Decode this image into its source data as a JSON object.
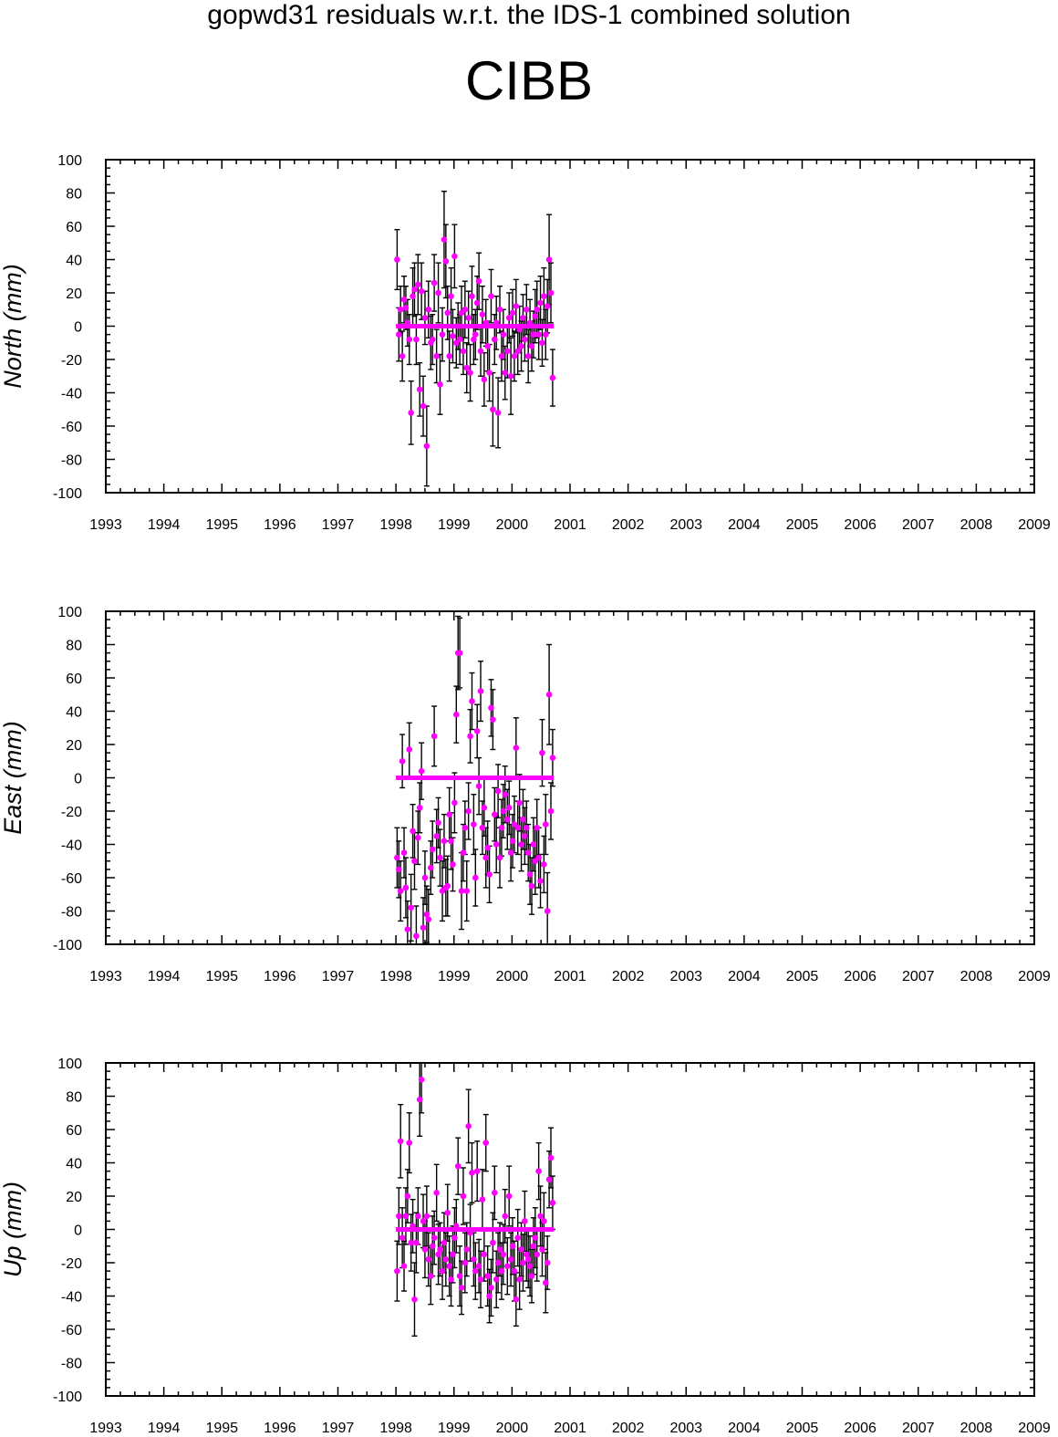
{
  "titles": {
    "line1": "gopwd31 residuals w.r.t. the IDS-1 combined solution",
    "line2": "CIBB"
  },
  "colors": {
    "points": "#ff00ff",
    "errorbars": "#000000",
    "axes": "#000000",
    "background": "#ffffff"
  },
  "chart_data": [
    {
      "type": "scatter",
      "ylabel": "North (mm)",
      "xlim": [
        1993,
        2009
      ],
      "ylim": [
        -100,
        100
      ],
      "xticks": [
        "1993",
        "1994",
        "1995",
        "1996",
        "1997",
        "1998",
        "1999",
        "2000",
        "2001",
        "2002",
        "2003",
        "2004",
        "2005",
        "2006",
        "2007",
        "2008",
        "2009"
      ],
      "yticks": [
        "100",
        "80",
        "60",
        "40",
        "20",
        "0",
        "-20",
        "-40",
        "-60",
        "-80",
        "-100"
      ],
      "zero_line": {
        "x": [
          1998.0,
          2000.72
        ],
        "y": 0
      },
      "points": {
        "x": [
          1998.02,
          1998.05,
          1998.08,
          1998.11,
          1998.14,
          1998.17,
          1998.2,
          1998.23,
          1998.26,
          1998.29,
          1998.32,
          1998.35,
          1998.38,
          1998.41,
          1998.44,
          1998.47,
          1998.5,
          1998.53,
          1998.56,
          1998.6,
          1998.63,
          1998.66,
          1998.7,
          1998.73,
          1998.76,
          1998.8,
          1998.83,
          1998.86,
          1998.89,
          1998.92,
          1998.95,
          1998.98,
          1999.01,
          1999.04,
          1999.07,
          1999.1,
          1999.13,
          1999.16,
          1999.19,
          1999.22,
          1999.25,
          1999.28,
          1999.31,
          1999.34,
          1999.37,
          1999.4,
          1999.43,
          1999.46,
          1999.49,
          1999.52,
          1999.55,
          1999.58,
          1999.61,
          1999.64,
          1999.67,
          1999.7,
          1999.73,
          1999.76,
          1999.79,
          1999.82,
          1999.85,
          1999.88,
          1999.92,
          1999.95,
          1999.98,
          2000.01,
          2000.04,
          2000.07,
          2000.1,
          2000.13,
          2000.16,
          2000.19,
          2000.22,
          2000.25,
          2000.28,
          2000.31,
          2000.34,
          2000.37,
          2000.4,
          2000.43,
          2000.46,
          2000.49,
          2000.52,
          2000.55,
          2000.58,
          2000.61,
          2000.64,
          2000.67,
          2000.7
        ],
        "y": [
          40,
          -5,
          10,
          -18,
          16,
          11,
          2,
          -8,
          -52,
          18,
          22,
          -8,
          25,
          -38,
          21,
          -48,
          5,
          -72,
          10,
          -10,
          -8,
          26,
          -18,
          20,
          -35,
          -5,
          52,
          39,
          8,
          -18,
          18,
          -6,
          42,
          -10,
          0,
          -8,
          8,
          -15,
          10,
          -25,
          5,
          -28,
          18,
          -8,
          -5,
          14,
          27,
          -15,
          7,
          -32,
          2,
          -12,
          -28,
          18,
          -50,
          -8,
          2,
          -52,
          10,
          -18,
          -5,
          -28,
          -15,
          5,
          -30,
          8,
          -18,
          12,
          -15,
          -2,
          -12,
          5,
          -8,
          10,
          -18,
          2,
          -12,
          -5,
          6,
          10,
          -5,
          14,
          -10,
          18,
          -5,
          12,
          40,
          20,
          -31
        ],
        "err": [
          18,
          16,
          14,
          15,
          14,
          13,
          14,
          15,
          19,
          17,
          16,
          15,
          18,
          16,
          17,
          18,
          16,
          24,
          17,
          16,
          15,
          17,
          16,
          18,
          18,
          16,
          29,
          22,
          16,
          15,
          17,
          16,
          19,
          15,
          14,
          15,
          16,
          14,
          17,
          15,
          16,
          17,
          18,
          15,
          15,
          16,
          17,
          15,
          17,
          16,
          14,
          15,
          17,
          16,
          22,
          15,
          16,
          21,
          14,
          15,
          15,
          16,
          16,
          15,
          23,
          14,
          15,
          16,
          14,
          14,
          15,
          14,
          13,
          15,
          16,
          14,
          15,
          14,
          16,
          17,
          15,
          16,
          14,
          17,
          15,
          16,
          27,
          18,
          17
        ]
      }
    },
    {
      "type": "scatter",
      "ylabel": "East (mm)",
      "xlim": [
        1993,
        2009
      ],
      "ylim": [
        -100,
        100
      ],
      "xticks": [
        "1993",
        "1994",
        "1995",
        "1996",
        "1997",
        "1998",
        "1999",
        "2000",
        "2001",
        "2002",
        "2003",
        "2004",
        "2005",
        "2006",
        "2007",
        "2008",
        "2009"
      ],
      "yticks": [
        "100",
        "80",
        "60",
        "40",
        "20",
        "0",
        "-20",
        "-40",
        "-60",
        "-80",
        "-100"
      ],
      "zero_line": {
        "x": [
          1998.0,
          2000.72
        ],
        "y": 0
      },
      "points": {
        "x": [
          1998.02,
          1998.05,
          1998.08,
          1998.11,
          1998.14,
          1998.17,
          1998.2,
          1998.23,
          1998.26,
          1998.29,
          1998.32,
          1998.35,
          1998.38,
          1998.41,
          1998.44,
          1998.47,
          1998.5,
          1998.53,
          1998.56,
          1998.6,
          1998.63,
          1998.66,
          1998.7,
          1998.73,
          1998.76,
          1998.8,
          1998.83,
          1998.86,
          1998.89,
          1998.92,
          1998.95,
          1998.98,
          1999.01,
          1999.04,
          1999.07,
          1999.1,
          1999.13,
          1999.16,
          1999.19,
          1999.22,
          1999.25,
          1999.28,
          1999.31,
          1999.34,
          1999.37,
          1999.4,
          1999.43,
          1999.46,
          1999.49,
          1999.52,
          1999.55,
          1999.58,
          1999.61,
          1999.64,
          1999.67,
          1999.7,
          1999.73,
          1999.76,
          1999.79,
          1999.82,
          1999.85,
          1999.88,
          1999.92,
          1999.95,
          1999.98,
          2000.01,
          2000.04,
          2000.07,
          2000.1,
          2000.13,
          2000.16,
          2000.19,
          2000.22,
          2000.25,
          2000.28,
          2000.31,
          2000.34,
          2000.37,
          2000.4,
          2000.43,
          2000.46,
          2000.49,
          2000.52,
          2000.55,
          2000.58,
          2000.61,
          2000.64,
          2000.67,
          2000.7
        ],
        "y": [
          -48,
          -55,
          -68,
          10,
          -45,
          -66,
          -91,
          17,
          -78,
          -32,
          -50,
          -95,
          -36,
          -18,
          4,
          -90,
          -60,
          -82,
          -85,
          -54,
          -43,
          25,
          -35,
          -27,
          -48,
          -68,
          -38,
          -66,
          -65,
          -22,
          -38,
          -52,
          -15,
          38,
          75,
          75,
          -68,
          -45,
          -30,
          -68,
          -20,
          25,
          46,
          -28,
          -60,
          28,
          -5,
          52,
          -30,
          -18,
          -48,
          -42,
          -58,
          42,
          35,
          -22,
          -40,
          -8,
          -48,
          -30,
          -20,
          -10,
          -25,
          -18,
          -45,
          -38,
          -28,
          18,
          -30,
          -15,
          -40,
          -25,
          -35,
          -30,
          -45,
          -58,
          -65,
          -40,
          -50,
          -30,
          -48,
          -62,
          15,
          -52,
          -28,
          -80,
          50,
          -20,
          12
        ],
        "err": [
          18,
          17,
          18,
          16,
          15,
          18,
          17,
          16,
          20,
          16,
          17,
          18,
          16,
          15,
          17,
          18,
          16,
          17,
          18,
          16,
          17,
          18,
          16,
          15,
          17,
          18,
          16,
          17,
          18,
          16,
          17,
          16,
          18,
          17,
          22,
          21,
          23,
          17,
          16,
          18,
          17,
          16,
          17,
          18,
          17,
          16,
          17,
          18,
          16,
          17,
          18,
          16,
          17,
          17,
          18,
          16,
          17,
          16,
          18,
          17,
          16,
          17,
          18,
          16,
          17,
          16,
          17,
          18,
          16,
          17,
          16,
          18,
          17,
          16,
          17,
          18,
          17,
          16,
          20,
          17,
          18,
          16,
          20,
          17,
          18,
          23,
          30,
          17,
          17
        ]
      }
    },
    {
      "type": "scatter",
      "ylabel": "Up (mm)",
      "xlim": [
        1993,
        2009
      ],
      "ylim": [
        -100,
        100
      ],
      "xticks": [
        "1993",
        "1994",
        "1995",
        "1996",
        "1997",
        "1998",
        "1999",
        "2000",
        "2001",
        "2002",
        "2003",
        "2004",
        "2005",
        "2006",
        "2007",
        "2008",
        "2009"
      ],
      "yticks": [
        "100",
        "80",
        "60",
        "40",
        "20",
        "0",
        "-20",
        "-40",
        "-60",
        "-80",
        "-100"
      ],
      "zero_line": {
        "x": [
          1998.0,
          2000.72
        ],
        "y": 0
      },
      "points": {
        "x": [
          1998.02,
          1998.05,
          1998.08,
          1998.11,
          1998.14,
          1998.17,
          1998.2,
          1998.23,
          1998.26,
          1998.29,
          1998.32,
          1998.35,
          1998.38,
          1998.41,
          1998.44,
          1998.47,
          1998.5,
          1998.53,
          1998.56,
          1998.6,
          1998.63,
          1998.66,
          1998.7,
          1998.73,
          1998.76,
          1998.8,
          1998.83,
          1998.86,
          1998.89,
          1998.92,
          1998.95,
          1998.98,
          1999.01,
          1999.04,
          1999.07,
          1999.1,
          1999.13,
          1999.16,
          1999.19,
          1999.22,
          1999.25,
          1999.28,
          1999.31,
          1999.34,
          1999.37,
          1999.4,
          1999.43,
          1999.46,
          1999.49,
          1999.52,
          1999.55,
          1999.58,
          1999.61,
          1999.64,
          1999.67,
          1999.7,
          1999.73,
          1999.76,
          1999.79,
          1999.82,
          1999.85,
          1999.88,
          1999.92,
          1999.95,
          1999.98,
          2000.01,
          2000.04,
          2000.07,
          2000.1,
          2000.13,
          2000.16,
          2000.19,
          2000.22,
          2000.25,
          2000.28,
          2000.31,
          2000.34,
          2000.37,
          2000.4,
          2000.43,
          2000.46,
          2000.49,
          2000.52,
          2000.55,
          2000.58,
          2000.61,
          2000.64,
          2000.67,
          2000.7
        ],
        "y": [
          -25,
          8,
          53,
          -5,
          -22,
          8,
          20,
          52,
          -8,
          2,
          -42,
          -8,
          8,
          78,
          90,
          5,
          -12,
          8,
          -18,
          -28,
          -10,
          -5,
          22,
          -15,
          -12,
          -25,
          -8,
          -18,
          10,
          -22,
          -30,
          -15,
          -5,
          2,
          38,
          -28,
          -35,
          20,
          -20,
          -12,
          62,
          -2,
          34,
          -18,
          -25,
          35,
          -22,
          -30,
          18,
          -15,
          52,
          -28,
          -40,
          -35,
          -8,
          22,
          -30,
          -20,
          -12,
          -25,
          -15,
          8,
          -22,
          20,
          -18,
          -10,
          -25,
          -42,
          -5,
          -30,
          -12,
          -20,
          5,
          -15,
          -18,
          -22,
          -28,
          -10,
          -5,
          -15,
          35,
          8,
          -12,
          5,
          -32,
          -20,
          30,
          43,
          16
        ],
        "err": [
          18,
          17,
          22,
          18,
          15,
          17,
          16,
          18,
          17,
          16,
          22,
          18,
          17,
          22,
          20,
          16,
          17,
          18,
          16,
          17,
          18,
          16,
          17,
          18,
          16,
          17,
          18,
          16,
          17,
          18,
          16,
          17,
          18,
          16,
          17,
          18,
          16,
          17,
          18,
          16,
          22,
          17,
          18,
          16,
          17,
          18,
          16,
          17,
          18,
          16,
          17,
          18,
          16,
          17,
          18,
          16,
          17,
          18,
          16,
          17,
          18,
          16,
          17,
          18,
          16,
          17,
          18,
          16,
          17,
          18,
          16,
          17,
          18,
          16,
          17,
          18,
          16,
          17,
          18,
          16,
          17,
          18,
          16,
          17,
          18,
          16,
          17,
          18,
          16
        ]
      }
    }
  ]
}
